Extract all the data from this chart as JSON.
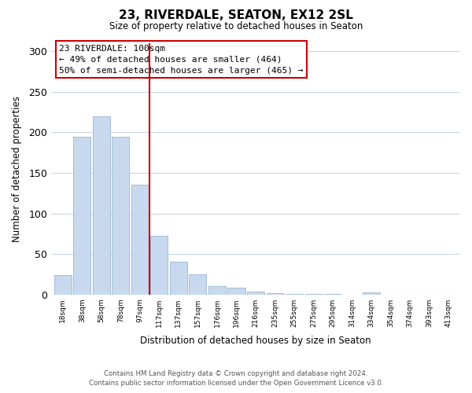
{
  "title": "23, RIVERDALE, SEATON, EX12 2SL",
  "subtitle": "Size of property relative to detached houses in Seaton",
  "xlabel": "Distribution of detached houses by size in Seaton",
  "ylabel": "Number of detached properties",
  "bar_labels": [
    "18sqm",
    "38sqm",
    "58sqm",
    "78sqm",
    "97sqm",
    "117sqm",
    "137sqm",
    "157sqm",
    "176sqm",
    "196sqm",
    "216sqm",
    "235sqm",
    "255sqm",
    "275sqm",
    "295sqm",
    "314sqm",
    "334sqm",
    "354sqm",
    "374sqm",
    "393sqm",
    "413sqm"
  ],
  "bar_values": [
    24,
    195,
    220,
    195,
    135,
    72,
    40,
    25,
    10,
    8,
    4,
    2,
    1,
    1,
    1,
    0,
    3,
    0,
    0,
    0,
    0
  ],
  "bar_color": "#c8d9ef",
  "bar_edge_color": "#9ab5d0",
  "vline_color": "#cc0000",
  "ylim": [
    0,
    310
  ],
  "yticks": [
    0,
    50,
    100,
    150,
    200,
    250,
    300
  ],
  "annotation_title": "23 RIVERDALE: 100sqm",
  "annotation_line1": "← 49% of detached houses are smaller (464)",
  "annotation_line2": "50% of semi-detached houses are larger (465) →",
  "annotation_box_color": "#ffffff",
  "annotation_box_edge": "#cc0000",
  "footer_line1": "Contains HM Land Registry data © Crown copyright and database right 2024.",
  "footer_line2": "Contains public sector information licensed under the Open Government Licence v3.0.",
  "background_color": "#ffffff",
  "grid_color": "#c8d8e8"
}
